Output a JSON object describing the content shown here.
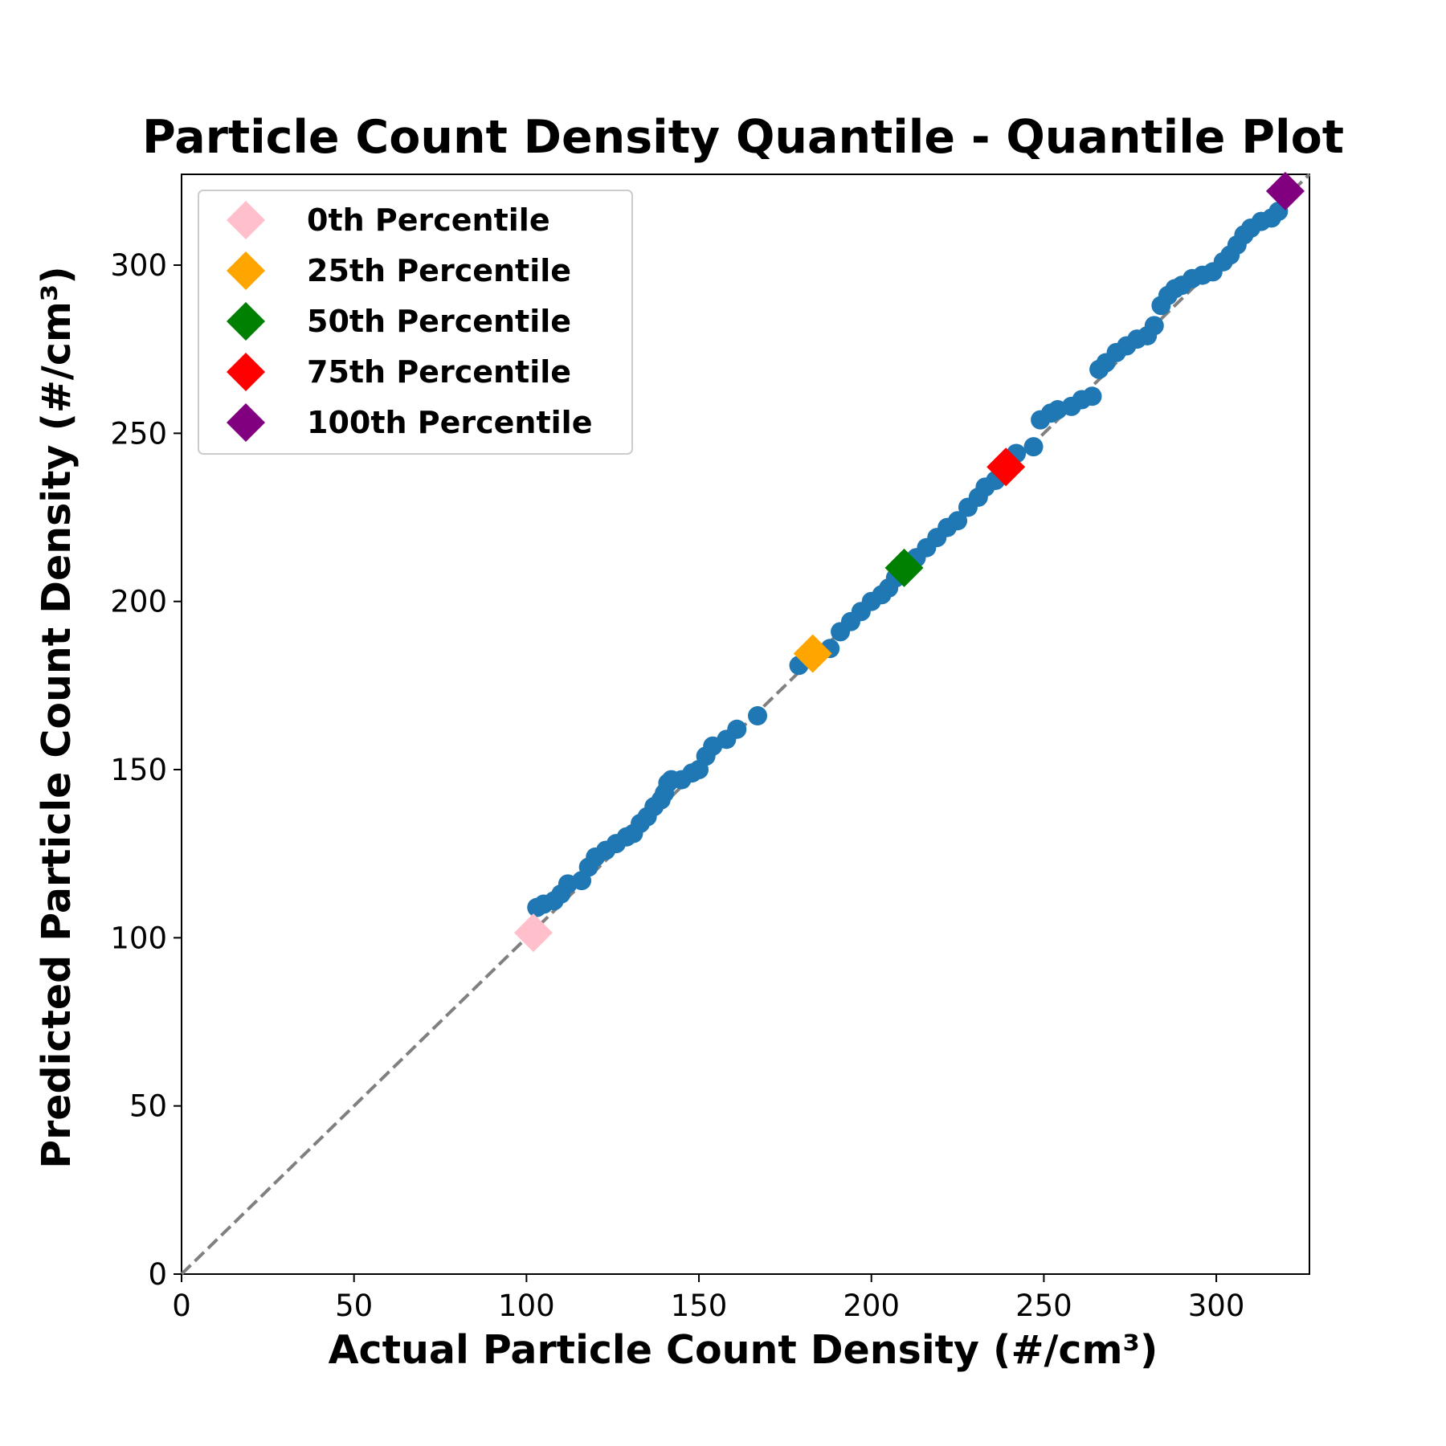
{
  "chart_data": {
    "type": "scatter",
    "title": "Particle Count Density Quantile - Quantile Plot",
    "xlabel": "Actual Particle Count Density (#/cm³)",
    "ylabel": "Predicted Particle Count Density (#/cm³)",
    "xlim": [
      0,
      327
    ],
    "ylim": [
      0,
      327
    ],
    "xticks": [
      0,
      50,
      100,
      150,
      200,
      250,
      300
    ],
    "yticks": [
      0,
      50,
      100,
      150,
      200,
      250,
      300
    ],
    "grid": false,
    "legend_position": "upper-left",
    "reference_line": {
      "x": [
        0,
        327
      ],
      "y": [
        0,
        327
      ],
      "style": "dashed",
      "color": "#808080"
    },
    "series": [
      {
        "color": "#1f77b4",
        "marker": "circle",
        "x": [
          103,
          105,
          108,
          110,
          112,
          116,
          118,
          120,
          123,
          126,
          129,
          131,
          133,
          135,
          137,
          139,
          140,
          141,
          142,
          145,
          148,
          150,
          152,
          154,
          158,
          161,
          167,
          179,
          184,
          188,
          191,
          194,
          197,
          200,
          203,
          205,
          207,
          210,
          213,
          216,
          219,
          222,
          225,
          228,
          231,
          233,
          236,
          238,
          242,
          247,
          249,
          252,
          254,
          258,
          261,
          264,
          266,
          268,
          271,
          274,
          277,
          280,
          282,
          284,
          286,
          288,
          290,
          293,
          296,
          299,
          302,
          304,
          306,
          308,
          310,
          313,
          316,
          318,
          320
        ],
        "y": [
          109,
          110,
          111,
          113,
          116,
          117,
          121,
          124,
          126,
          128,
          130,
          131,
          134,
          136,
          139,
          141,
          143,
          146,
          147,
          147,
          149,
          150,
          154,
          157,
          159,
          162,
          166,
          181,
          184,
          186,
          191,
          194,
          197,
          200,
          202,
          204,
          207,
          210,
          213,
          216,
          219,
          222,
          224,
          228,
          231,
          234,
          236,
          239,
          244,
          246,
          254,
          256,
          257,
          258,
          260,
          261,
          269,
          271,
          274,
          276,
          278,
          279,
          282,
          288,
          291,
          293,
          294,
          296,
          297,
          298,
          301,
          303,
          306,
          309,
          311,
          313,
          314,
          316,
          321
        ]
      },
      {
        "name": "0th Percentile",
        "color": "#ffc0cb",
        "marker": "diamond",
        "x": [
          102
        ],
        "y": [
          101.5
        ]
      },
      {
        "name": "25th Percentile",
        "color": "#ffa500",
        "marker": "diamond",
        "x": [
          183
        ],
        "y": [
          184.5
        ]
      },
      {
        "name": "50th Percentile",
        "color": "#008000",
        "marker": "diamond",
        "x": [
          209.5
        ],
        "y": [
          210
        ]
      },
      {
        "name": "75th Percentile",
        "color": "#ff0000",
        "marker": "diamond",
        "x": [
          239
        ],
        "y": [
          240
        ]
      },
      {
        "name": "100th Percentile",
        "color": "#800080",
        "marker": "diamond",
        "x": [
          320
        ],
        "y": [
          322
        ]
      }
    ]
  }
}
